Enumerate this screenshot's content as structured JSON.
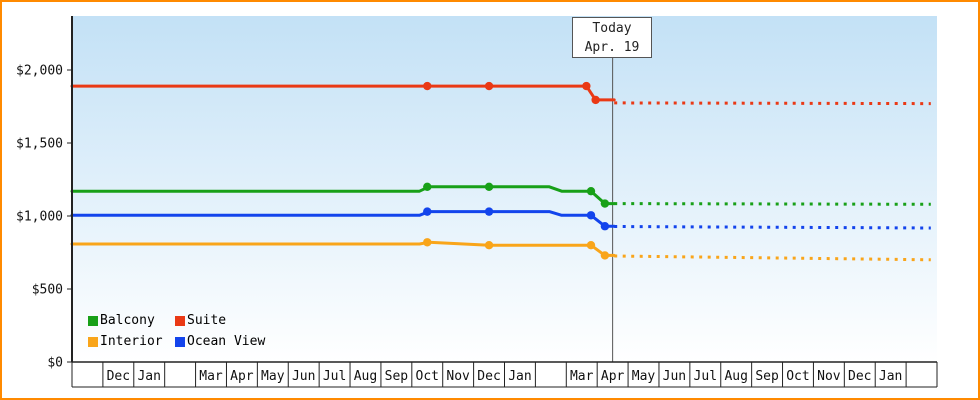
{
  "chart_data": {
    "type": "line",
    "description": "Price history by cabin category with solid history and dotted forecast after today",
    "y_axis": {
      "tick_labels": [
        "$0",
        "$500",
        "$1,000",
        "$1,500",
        "$2,000"
      ],
      "tick_values": [
        0,
        500,
        1000,
        1500,
        2000
      ],
      "min": 0,
      "max": 2370
    },
    "x_axis": {
      "month_cells": [
        "",
        "Dec",
        "Jan",
        "",
        "Mar",
        "Apr",
        "May",
        "Jun",
        "Jul",
        "Aug",
        "Sep",
        "Oct",
        "Nov",
        "Dec",
        "Jan",
        "",
        "Mar",
        "Apr",
        "May",
        "Jun",
        "Jul",
        "Aug",
        "Sep",
        "Oct",
        "Nov",
        "Dec",
        "Jan",
        ""
      ]
    },
    "today": {
      "label_line1": "Today",
      "label_line2": "Apr. 19",
      "cell_index": 17
    },
    "series": [
      {
        "name": "Balcony",
        "color": "#18a018",
        "solid": [
          [
            -0.5,
            1170
          ],
          [
            10.75,
            1170
          ],
          [
            11.05,
            1200
          ],
          [
            14.95,
            1200
          ],
          [
            15.35,
            1170
          ],
          [
            16.3,
            1170
          ],
          [
            16.75,
            1085
          ],
          [
            17.05,
            1085
          ]
        ],
        "markers": [
          [
            11,
            1200
          ],
          [
            13,
            1200
          ],
          [
            16.3,
            1170
          ],
          [
            16.75,
            1085
          ]
        ],
        "dotted": [
          [
            17.05,
            1085
          ],
          [
            27.3,
            1080
          ]
        ]
      },
      {
        "name": "Suite",
        "color": "#ea3915",
        "solid": [
          [
            -0.5,
            1890
          ],
          [
            16.15,
            1890
          ],
          [
            16.45,
            1795
          ],
          [
            17.05,
            1795
          ]
        ],
        "markers": [
          [
            11,
            1890
          ],
          [
            13,
            1890
          ],
          [
            16.15,
            1890
          ],
          [
            16.45,
            1795
          ]
        ],
        "dotted": [
          [
            17.05,
            1775
          ],
          [
            27.3,
            1770
          ]
        ]
      },
      {
        "name": "Interior",
        "color": "#f9a51a",
        "solid": [
          [
            -0.5,
            808
          ],
          [
            10.75,
            808
          ],
          [
            11.05,
            820
          ],
          [
            13,
            800
          ],
          [
            16.3,
            800
          ],
          [
            16.75,
            730
          ],
          [
            17.05,
            730
          ]
        ],
        "markers": [
          [
            11,
            820
          ],
          [
            13,
            800
          ],
          [
            16.3,
            800
          ],
          [
            16.75,
            730
          ]
        ],
        "dotted": [
          [
            17.05,
            726
          ],
          [
            27.3,
            700
          ]
        ]
      },
      {
        "name": "Ocean View",
        "color": "#1344ec",
        "solid": [
          [
            -0.5,
            1005
          ],
          [
            10.75,
            1005
          ],
          [
            11.05,
            1030
          ],
          [
            14.95,
            1030
          ],
          [
            15.35,
            1005
          ],
          [
            16.3,
            1005
          ],
          [
            16.75,
            930
          ],
          [
            17.05,
            930
          ]
        ],
        "markers": [
          [
            11,
            1030
          ],
          [
            13,
            1030
          ],
          [
            16.3,
            1005
          ],
          [
            16.75,
            930
          ]
        ],
        "dotted": [
          [
            17.05,
            928
          ],
          [
            27.3,
            918
          ]
        ]
      }
    ],
    "legend": [
      {
        "label": "Balcony",
        "color": "#18a018"
      },
      {
        "label": "Suite",
        "color": "#ea3915"
      },
      {
        "label": "Interior",
        "color": "#f9a51a"
      },
      {
        "label": "Ocean View",
        "color": "#1344ec"
      }
    ],
    "colors": {
      "border": "#ff8a00",
      "axis": "#222222",
      "today_line": "#555555",
      "bg_top": "#c3e1f6",
      "bg_bottom": "#ffffff"
    }
  }
}
